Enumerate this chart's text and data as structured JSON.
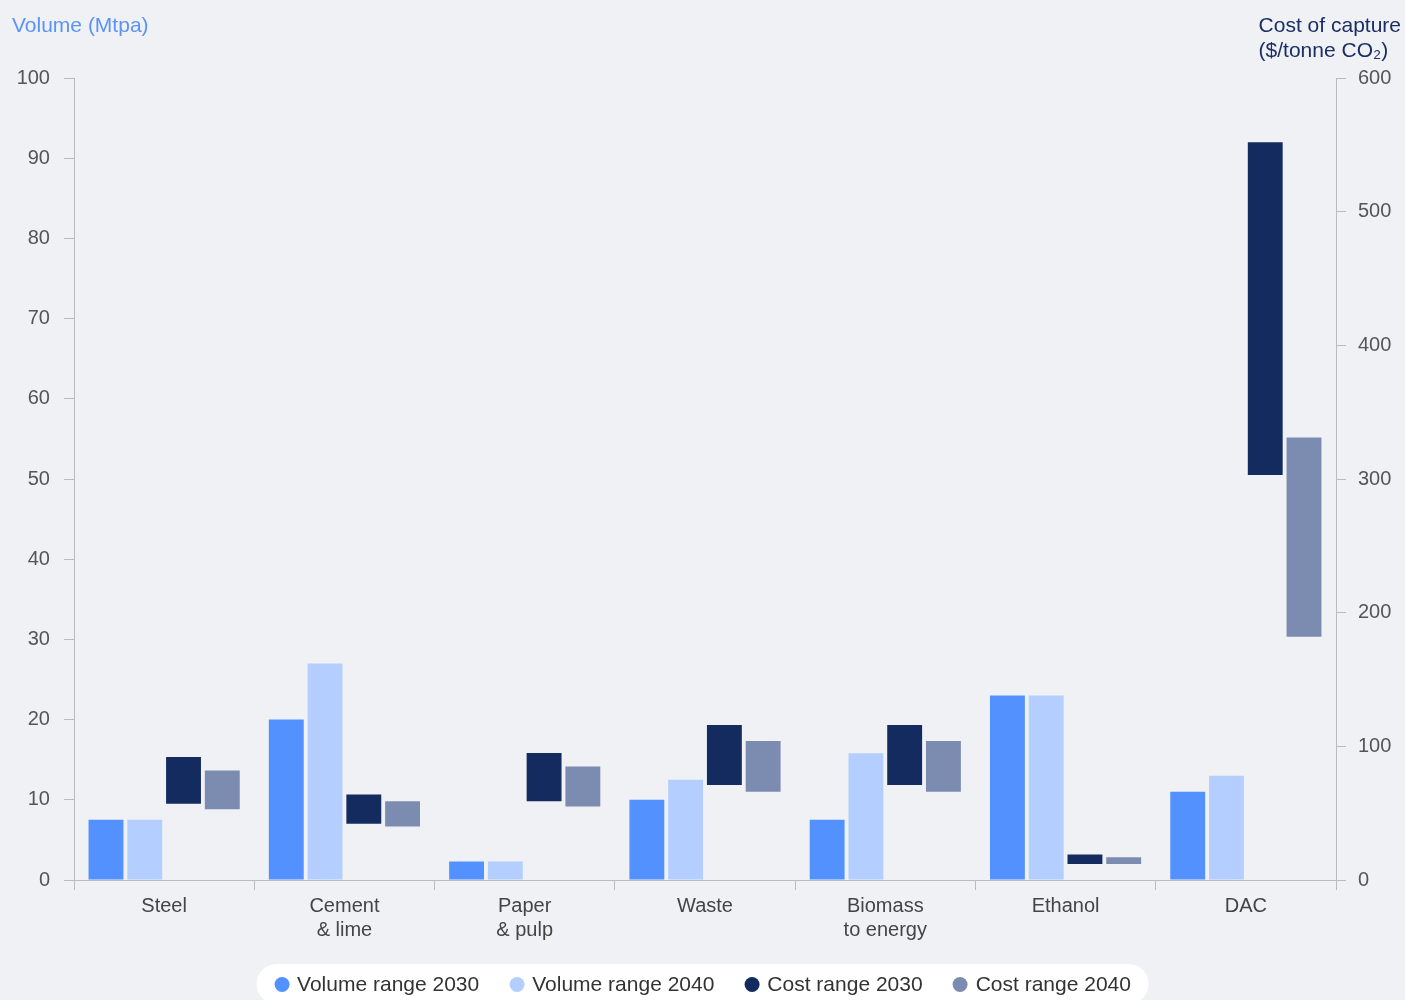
{
  "chart_data": {
    "type": "bar",
    "ylabel": "Volume (Mtpa)",
    "y2label": "Cost of capture\n($/tonne CO₂)",
    "categories": [
      "Steel",
      "Cement\n& lime",
      "Paper\n& pulp",
      "Waste",
      "Biomass\nto energy",
      "Ethanol",
      "DAC"
    ],
    "ylim": [
      0,
      100
    ],
    "yticks": [
      0,
      10,
      20,
      30,
      40,
      50,
      60,
      70,
      80,
      90,
      100
    ],
    "y2lim": [
      0,
      600
    ],
    "y2ticks": [
      0,
      100,
      200,
      300,
      400,
      500,
      600
    ],
    "grid": false,
    "legend": "bottom",
    "series": [
      {
        "name": "Volume range 2030",
        "color": "#5391ff",
        "values": [
          7.5,
          20,
          2.3,
          10,
          7.5,
          23,
          11
        ]
      },
      {
        "name": "Volume range 2040",
        "color": "#b4cfff",
        "values": [
          7.5,
          27,
          2.3,
          12.5,
          15.8,
          23,
          13
        ]
      },
      {
        "name": "Cost range 2030",
        "color": "#142b5f",
        "axis": "y2",
        "base": [
          57,
          42,
          59,
          71,
          71,
          12,
          303
        ],
        "values": [
          35,
          22,
          36,
          45,
          45,
          7,
          249
        ]
      },
      {
        "name": "Cost range 2040",
        "color": "#7c8bb0",
        "axis": "y2",
        "base": [
          53,
          40,
          55,
          66,
          66,
          12,
          182
        ],
        "values": [
          29,
          19,
          30,
          38,
          38,
          5,
          149
        ]
      }
    ]
  }
}
